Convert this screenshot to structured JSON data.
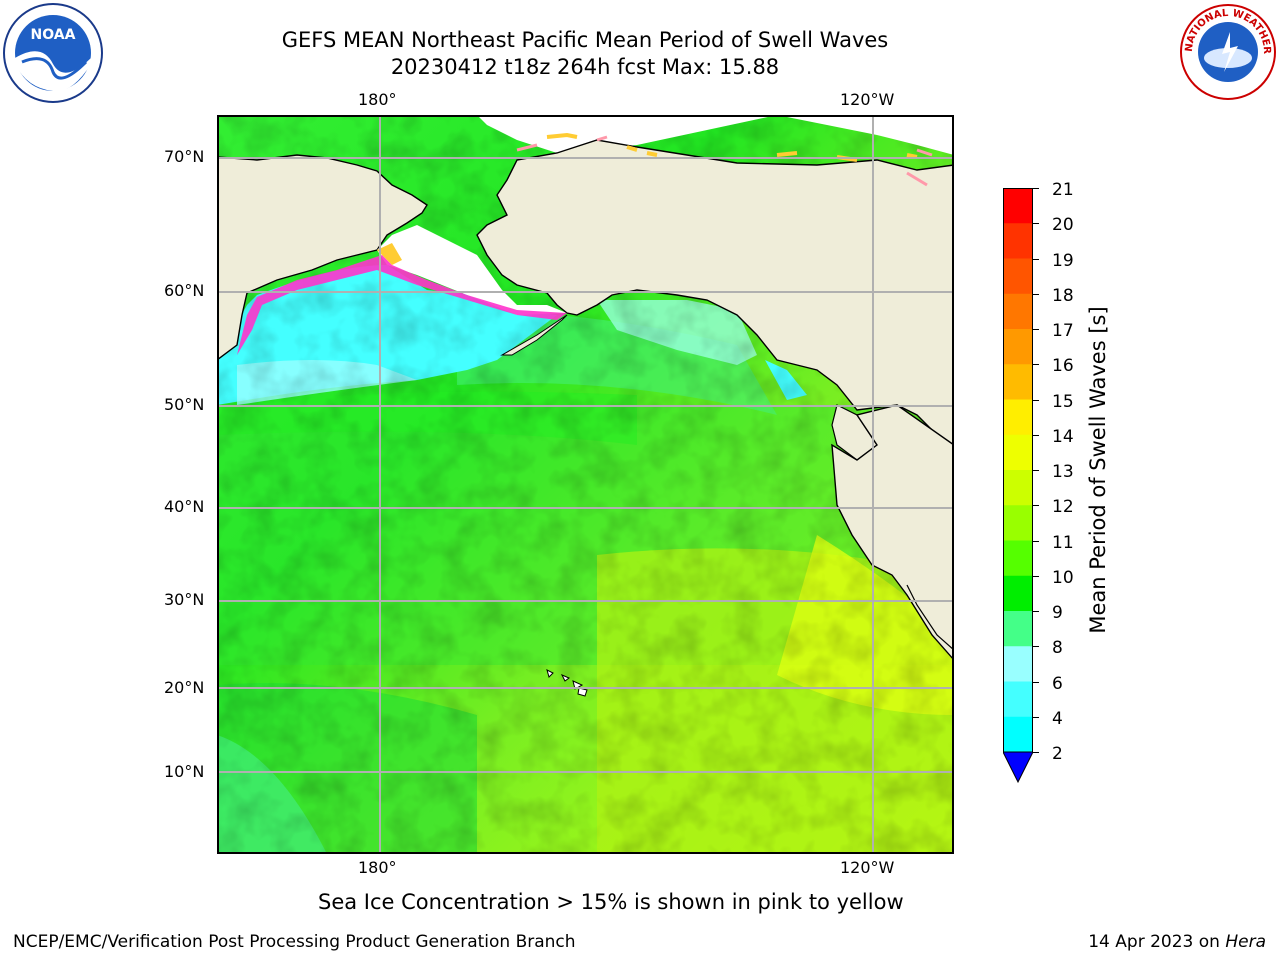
{
  "title": {
    "line1": "GEFS MEAN Northeast Pacific Mean Period of Swell Waves",
    "line2": "20230412 t18z 264h fcst   Max: 15.88"
  },
  "map": {
    "top_lon_labels": [
      "180°",
      "120°W"
    ],
    "bottom_lon_labels": [
      "180°",
      "120°W"
    ],
    "lat_labels": [
      "70°N",
      "60°N",
      "50°N",
      "40°N",
      "30°N",
      "20°N",
      "10°N"
    ],
    "colors": {
      "land": "#efedd9",
      "ice_free": "#ffffff",
      "grid": "#b0b0b0",
      "ice_pink": "#ff33cc",
      "ice_yellow": "#ffcc33"
    }
  },
  "colorbar": {
    "title": "Mean Period of Swell Waves [s]",
    "tick_labels": [
      "21",
      "20",
      "19",
      "18",
      "17",
      "16",
      "15",
      "14",
      "13",
      "12",
      "11",
      "10",
      "9",
      "8",
      "6",
      "4",
      "2"
    ],
    "colors": [
      "#ff0000",
      "#ff3300",
      "#ff5500",
      "#ff7700",
      "#ff9900",
      "#ffbb00",
      "#ffee00",
      "#eeff00",
      "#ccff00",
      "#99ff00",
      "#55ff00",
      "#00ee00",
      "#44ff88",
      "#99ffff",
      "#44ffff",
      "#00ffff",
      "#0077ff"
    ],
    "extend_color": "#0000ff"
  },
  "caption": "Sea Ice Concentration > 15% is shown in pink to yellow",
  "footer": {
    "left": "NCEP/EMC/Verification Post Processing Product Generation Branch",
    "right_date": "14 Apr 2023 on ",
    "right_host": "Hera"
  },
  "logos": {
    "noaa_text": "NOAA",
    "nws_text": "NATIONAL WEATHER SERVICE"
  }
}
